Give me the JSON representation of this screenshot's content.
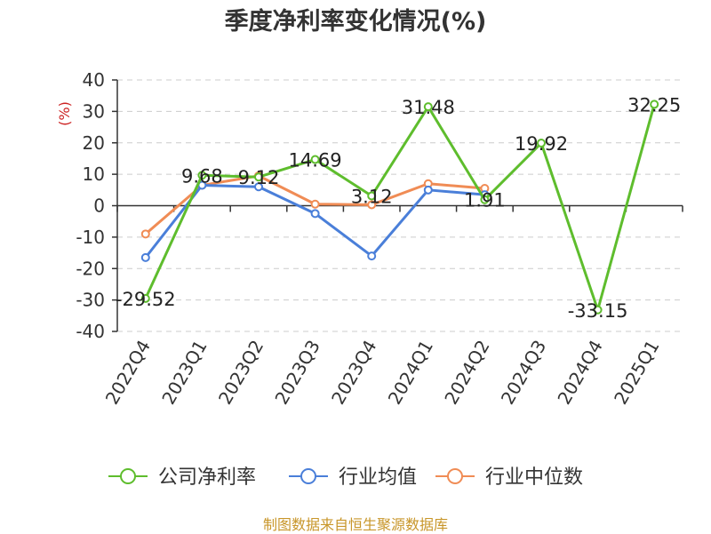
{
  "chart_data": {
    "type": "line",
    "title": "季度净利率变化情况(%)",
    "ylabel": "(%)",
    "xlabel": "",
    "categories": [
      "2022Q4",
      "2023Q1",
      "2023Q2",
      "2023Q3",
      "2023Q4",
      "2024Q1",
      "2024Q2",
      "2024Q3",
      "2024Q4",
      "2025Q1"
    ],
    "ylim": [
      -40,
      40
    ],
    "yticks": [
      40,
      30,
      20,
      10,
      0,
      -10,
      -20,
      -30,
      -40
    ],
    "grid": true,
    "legend_position": "bottom",
    "series": [
      {
        "name": "公司净利率",
        "color": "#5ebd2d",
        "values": [
          -29.52,
          9.68,
          9.12,
          14.69,
          3.12,
          31.48,
          1.91,
          19.92,
          -33.15,
          32.25
        ],
        "labels": [
          "-29.52",
          "9.68",
          "9.12",
          "14.69",
          "3.12",
          "31.48",
          "1.91",
          "19.92",
          "-33.15",
          "32.25"
        ]
      },
      {
        "name": "行业均值",
        "color": "#4a7fd9",
        "values": [
          -16.5,
          6.5,
          6.0,
          -2.5,
          -16.0,
          5.0,
          3.5,
          null,
          null,
          null
        ]
      },
      {
        "name": "行业中位数",
        "color": "#f08c55",
        "values": [
          -9.0,
          6.5,
          9.5,
          0.5,
          0.3,
          7.0,
          5.5,
          null,
          null,
          null
        ]
      }
    ]
  },
  "source_text": "制图数据来自恒生聚源数据库"
}
